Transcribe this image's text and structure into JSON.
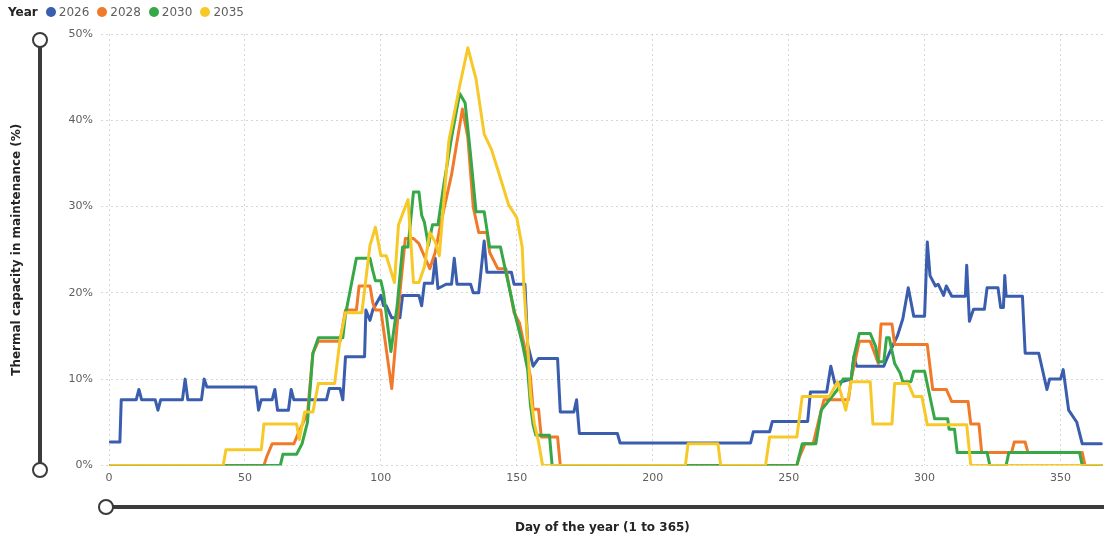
{
  "chart_data": {
    "type": "line",
    "xlabel": "Day of the year (1 to 365)",
    "ylabel": "Thermal capacity in maintenance (%)",
    "legend_title": "Year",
    "legend": "top left",
    "grid": true,
    "marker": "none",
    "line_style": "solid",
    "xlim": [
      -3,
      366
    ],
    "xticks": [
      0,
      50,
      100,
      150,
      200,
      250,
      300,
      350
    ],
    "ylim": [
      0,
      50
    ],
    "yticks": [
      {
        "value": 0,
        "label": "0%"
      },
      {
        "value": 10,
        "label": "10%"
      },
      {
        "value": 20,
        "label": "20%"
      },
      {
        "value": 30,
        "label": "30%"
      },
      {
        "value": 40,
        "label": "40%"
      },
      {
        "value": 50,
        "label": "50%"
      }
    ],
    "series": [
      {
        "name": "2026",
        "color": "#3a5dae",
        "x": [
          0.5,
          4,
          4.5,
          10,
          11,
          12,
          17,
          18,
          19,
          27,
          28,
          29,
          34,
          35,
          36,
          54,
          55,
          56,
          60,
          61,
          62,
          66,
          67,
          68,
          80,
          81,
          85,
          86,
          87,
          94,
          94.5,
          96,
          97,
          100,
          101,
          102,
          104,
          107,
          108,
          114,
          115,
          116,
          119,
          120,
          121,
          124,
          126,
          127,
          128,
          133,
          134,
          136,
          138,
          139,
          148,
          149,
          153,
          154,
          156,
          158,
          165,
          166,
          171,
          172,
          173,
          187,
          188,
          236,
          237,
          243,
          244,
          257,
          258,
          264,
          265.5,
          267,
          273,
          274,
          275,
          285,
          287,
          290,
          292,
          294,
          296,
          300,
          301,
          302,
          304,
          305,
          307,
          308,
          310,
          315,
          315.5,
          316.5,
          318,
          322,
          323,
          327,
          328,
          329,
          329.5,
          330,
          336,
          337,
          342,
          345,
          346,
          350,
          351,
          353,
          356,
          358,
          365
        ],
        "values": [
          2.7,
          2.7,
          7.6,
          7.6,
          8.8,
          7.6,
          7.6,
          6.4,
          7.6,
          7.6,
          10,
          7.6,
          7.6,
          10,
          9.1,
          9.1,
          6.4,
          7.6,
          7.6,
          8.8,
          6.4,
          6.4,
          8.8,
          7.6,
          7.6,
          8.9,
          8.9,
          7.6,
          12.6,
          12.6,
          18,
          16.8,
          18,
          19.7,
          18.5,
          18.5,
          17.1,
          17.1,
          19.7,
          19.7,
          18.5,
          21.1,
          21.1,
          24,
          20.5,
          21,
          21,
          24,
          21,
          21,
          20,
          20,
          26,
          22.4,
          22.4,
          21,
          21,
          14,
          11.5,
          12.4,
          12.4,
          6.2,
          6.2,
          7.6,
          3.7,
          3.7,
          2.6,
          2.6,
          3.9,
          3.9,
          5.1,
          5.1,
          8.5,
          8.5,
          11.5,
          9.5,
          10,
          12.6,
          11.5,
          11.5,
          13,
          15,
          17,
          20.6,
          17.3,
          17.3,
          25.9,
          22,
          20.8,
          21,
          19.7,
          20.8,
          19.6,
          19.6,
          23.2,
          16.7,
          18.1,
          18.1,
          20.6,
          20.6,
          18.3,
          18.3,
          22,
          19.6,
          19.6,
          13,
          13,
          8.8,
          10,
          10,
          11.1,
          6.4,
          5,
          2.5,
          2.5
        ]
      },
      {
        "name": "2028",
        "color": "#f07a2a",
        "x": [
          0.5,
          57,
          58,
          60,
          68,
          70,
          73,
          75,
          77,
          85,
          87,
          91,
          92,
          96,
          97,
          98,
          100,
          104,
          107,
          109,
          112,
          114,
          118,
          120,
          122,
          126,
          130,
          132,
          134,
          136,
          139,
          140,
          143,
          146,
          149,
          151,
          153,
          155,
          156,
          158,
          159,
          165,
          166,
          253,
          254,
          256,
          259,
          262,
          263,
          272,
          273,
          276,
          280,
          283,
          284,
          288,
          289,
          301,
          303,
          308,
          310,
          316,
          317,
          320,
          321,
          332,
          333,
          337,
          338,
          358,
          359,
          365
        ],
        "values": [
          0,
          0,
          1,
          2.5,
          2.5,
          4,
          6,
          13,
          14.4,
          14.4,
          18,
          18,
          20.8,
          20.8,
          18.9,
          18,
          18,
          8.9,
          20,
          26.3,
          26.3,
          25.7,
          22.8,
          24.7,
          28,
          33.7,
          41.3,
          38,
          29.9,
          27,
          27,
          24.7,
          22.8,
          22.8,
          17.7,
          16.5,
          13.5,
          10.3,
          6.5,
          6.5,
          3.3,
          3.3,
          0,
          0,
          1,
          2.5,
          2.5,
          6.4,
          7.6,
          7.6,
          10,
          14.4,
          14.4,
          11.8,
          16.4,
          16.4,
          14,
          14,
          8.8,
          8.8,
          7.4,
          7.4,
          4.8,
          4.8,
          1.5,
          1.5,
          2.7,
          2.7,
          1.5,
          1.5,
          0,
          0
        ]
      },
      {
        "name": "2030",
        "color": "#36a847",
        "x": [
          0.5,
          63,
          64,
          69,
          71,
          73,
          75,
          77,
          86,
          87,
          91,
          96,
          97,
          98,
          100,
          101,
          103.7,
          106,
          108,
          110,
          112,
          114,
          115,
          116,
          117.5,
          119,
          121,
          123,
          126,
          129,
          131,
          133,
          135,
          138,
          140,
          144,
          149.5,
          152,
          154,
          155,
          156,
          157,
          162,
          163,
          253,
          255,
          260,
          262,
          265,
          268,
          270,
          273,
          274,
          276,
          280,
          282,
          283,
          285,
          286,
          287,
          289,
          291,
          292,
          295,
          296,
          300,
          303.7,
          308.5,
          309,
          311,
          312,
          323,
          324,
          330,
          331,
          357,
          358,
          365
        ],
        "values": [
          0,
          0,
          1.3,
          1.3,
          2.5,
          5,
          13,
          14.8,
          14.8,
          17.5,
          24,
          24,
          22.6,
          21.4,
          21.4,
          20,
          13.2,
          18.5,
          25.3,
          25.3,
          31.7,
          31.7,
          29,
          28.2,
          25.5,
          27.9,
          27.9,
          32.2,
          38,
          43.1,
          42,
          36,
          29.4,
          29.4,
          25.3,
          25.3,
          17.3,
          14.2,
          11.1,
          7.1,
          4.7,
          3.5,
          3.5,
          0,
          0,
          2.5,
          2.5,
          6.4,
          7.6,
          8.8,
          10,
          10,
          12.6,
          15.3,
          15.3,
          13.8,
          12,
          12,
          14.8,
          14.8,
          11.8,
          10.7,
          9.7,
          9.7,
          10.9,
          10.9,
          5.4,
          5.4,
          4.2,
          4.2,
          1.5,
          1.5,
          0,
          0,
          1.5,
          1.5,
          0,
          0
        ]
      },
      {
        "name": "2035",
        "color": "#f7c928",
        "x": [
          0.5,
          42,
          43,
          56,
          57,
          69,
          70,
          72,
          75,
          77,
          83,
          85,
          87,
          93,
          96,
          98,
          100,
          102,
          105,
          106.5,
          110,
          112,
          114,
          116,
          118,
          120,
          121.5,
          125,
          129,
          132,
          135,
          138,
          140.7,
          143,
          147,
          150,
          152,
          152.6,
          154,
          155,
          156.5,
          158,
          159.5,
          212,
          213,
          224,
          225,
          241.5,
          243,
          253,
          255,
          265,
          268,
          271,
          273,
          280,
          281,
          288,
          289,
          294,
          296,
          299,
          301,
          315.5,
          317,
          365
        ],
        "values": [
          0,
          0,
          1.8,
          1.8,
          4.8,
          4.8,
          3,
          6.2,
          6.2,
          9.5,
          9.5,
          14.6,
          17.7,
          17.7,
          25.5,
          27.6,
          24.3,
          24.3,
          21.2,
          27.9,
          30.8,
          21.2,
          21.2,
          23,
          27,
          25.9,
          24.3,
          37.6,
          44,
          48.4,
          44.8,
          38.4,
          36.6,
          34.3,
          30.2,
          28.7,
          25.3,
          20.8,
          14.2,
          8.3,
          4.8,
          2.7,
          0,
          0,
          2.5,
          2.5,
          0,
          0,
          3.3,
          3.3,
          8,
          8,
          9.7,
          6.4,
          9.7,
          9.7,
          4.8,
          4.8,
          9.5,
          9.5,
          8,
          8,
          4.7,
          4.7,
          0,
          0
        ]
      }
    ]
  }
}
